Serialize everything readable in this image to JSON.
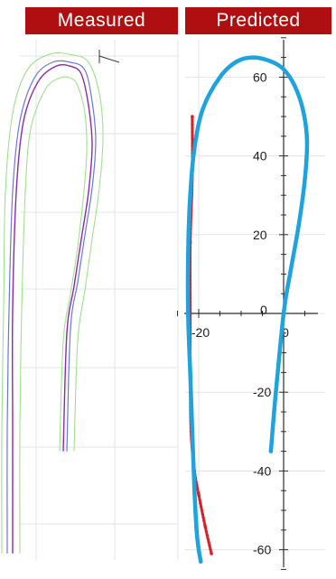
{
  "headers": {
    "left": "Measured",
    "right": "Predicted"
  },
  "colors": {
    "header_bg": "#b00f12",
    "header_text": "#ffffff",
    "grid": "#e3e3e3",
    "axis": "#2b2b2b",
    "measured_inner": "#8a2aa8",
    "measured_blue": "#6a78d6",
    "measured_outer": "#9fe08c",
    "predicted_blue": "#1ea3dc",
    "predicted_red": "#d8202a"
  },
  "chart_data": [
    {
      "type": "line",
      "title": "Measured",
      "xlabel": "",
      "ylabel": "",
      "grid": true,
      "series": [
        {
          "x": [
            -24,
            -24,
            -24,
            -23,
            -21,
            -17,
            -12,
            -8,
            -5,
            -3,
            -2,
            -3,
            -5,
            -7,
            -9,
            -10
          ],
          "y": [
            -62,
            -30,
            0,
            30,
            48,
            58,
            62,
            62,
            60,
            52,
            42,
            30,
            18,
            6,
            -6,
            -36
          ]
        },
        {
          "x": [
            -25.5,
            -25.5,
            -25,
            -24,
            -22,
            -18,
            -13,
            -8,
            -4,
            -2,
            -1,
            -2,
            -4,
            -6,
            -8,
            -9
          ],
          "y": [
            -62,
            -30,
            0,
            30,
            48,
            59,
            63,
            63,
            61,
            53,
            43,
            31,
            19,
            7,
            -5,
            -36
          ]
        },
        {
          "x": [
            -27,
            -27,
            -26.5,
            -26,
            -24,
            -20,
            -14,
            -8,
            -3,
            0,
            1,
            0,
            -2,
            -4,
            -6,
            -7
          ],
          "y": [
            -62,
            -30,
            0,
            30,
            50,
            61,
            65,
            65,
            63,
            55,
            44,
            31,
            18,
            5,
            -8,
            -36
          ]
        },
        {
          "x": [
            -22,
            -22,
            -21.5,
            -20.5,
            -19,
            -15,
            -11,
            -8,
            -6,
            -4,
            -3.5,
            -4.5,
            -6,
            -8,
            -10,
            -11
          ],
          "y": [
            -62,
            -30,
            0,
            30,
            46,
            56,
            59,
            59,
            57,
            50,
            40,
            28,
            16,
            4,
            -8,
            -36
          ]
        }
      ]
    },
    {
      "type": "line",
      "title": "Predicted",
      "xlabel": "",
      "ylabel": "",
      "xlim": [
        -30,
        8
      ],
      "ylim": [
        -65,
        70
      ],
      "grid": true,
      "x_ticks": [
        -20,
        0
      ],
      "y_ticks": [
        -60,
        -40,
        -20,
        0,
        20,
        40,
        60
      ],
      "series": [
        {
          "x": [
            -3,
            -2,
            0,
            1.5,
            3.5,
            5,
            5.5,
            4.5,
            2.5,
            0,
            -3,
            -7,
            -11,
            -15,
            -19,
            -21,
            -22,
            -22.5,
            -22.5,
            -22,
            -21.5,
            -21,
            -20.5,
            -20,
            -19.5
          ],
          "y": [
            -35,
            -22,
            0,
            10,
            22,
            34,
            44,
            52,
            58,
            62,
            64,
            65,
            64,
            60,
            52,
            42,
            30,
            15,
            0,
            -15,
            -30,
            -45,
            -55,
            -60,
            -63
          ]
        },
        {
          "x": [
            -21.5,
            -21.5,
            -22,
            -22,
            -22,
            -21.8,
            -21,
            -20,
            -18.5,
            -17
          ],
          "y": [
            50,
            35,
            18,
            0,
            -15,
            -30,
            -40,
            -46,
            -54,
            -61
          ]
        }
      ]
    }
  ]
}
